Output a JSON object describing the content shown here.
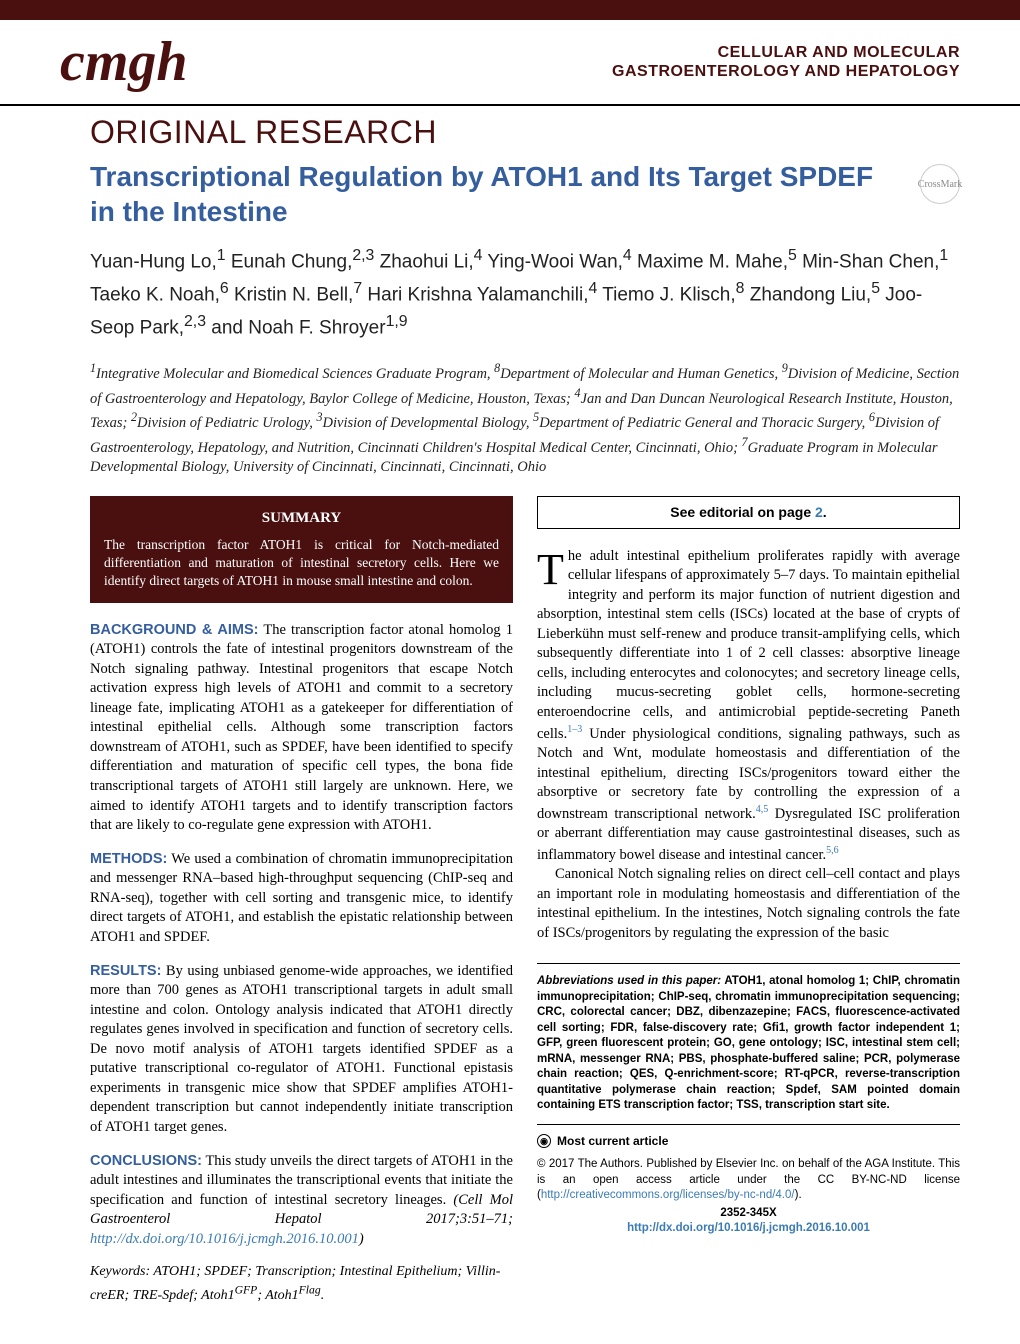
{
  "colors": {
    "brand": "#4a1010",
    "accent": "#355e9e",
    "link": "#3b7bb5",
    "bg": "#ffffff"
  },
  "typography": {
    "body_pt": 14.5,
    "title_pt": 28,
    "header_pt": 32,
    "logo_pt": 56
  },
  "header": {
    "logo": "cmgh",
    "journal_line1": "CELLULAR AND MOLECULAR",
    "journal_line2": "GASTROENTEROLOGY AND HEPATOLOGY"
  },
  "article_type": "ORIGINAL RESEARCH",
  "title": "Transcriptional Regulation by ATOH1 and Its Target SPDEF in the Intestine",
  "crossmark": "CrossMark",
  "authors_html": "Yuan-Hung Lo,<sup>1</sup> Eunah Chung,<sup>2,3</sup> Zhaohui Li,<sup>4</sup> Ying-Wooi Wan,<sup>4</sup> Maxime M. Mahe,<sup>5</sup> Min-Shan Chen,<sup>1</sup> Taeko K. Noah,<sup>6</sup> Kristin N. Bell,<sup>7</sup> Hari Krishna Yalamanchili,<sup>4</sup> Tiemo J. Klisch,<sup>8</sup> Zhandong Liu,<sup>5</sup> Joo-Seop Park,<sup>2,3</sup> and Noah F. Shroyer<sup>1,9</sup>",
  "affiliations": "<sup>1</sup>Integrative Molecular and Biomedical Sciences Graduate Program, <sup>8</sup>Department of Molecular and Human Genetics, <sup>9</sup>Division of Medicine, Section of Gastroenterology and Hepatology, Baylor College of Medicine, Houston, Texas; <sup>4</sup>Jan and Dan Duncan Neurological Research Institute, Houston, Texas; <sup>2</sup>Division of Pediatric Urology, <sup>3</sup>Division of Developmental Biology, <sup>5</sup>Department of Pediatric General and Thoracic Surgery, <sup>6</sup>Division of Gastroenterology, Hepatology, and Nutrition, Cincinnati Children's Hospital Medical Center, Cincinnati, Ohio; <sup>7</sup>Graduate Program in Molecular Developmental Biology, University of Cincinnati, Cincinnati, Cincinnati, Ohio",
  "summary": {
    "heading": "SUMMARY",
    "text": "The transcription factor ATOH1 is critical for Notch-mediated differentiation and maturation of intestinal secretory cells. Here we identify direct targets of ATOH1 in mouse small intestine and colon."
  },
  "abstract": {
    "background": {
      "head": "BACKGROUND & AIMS:",
      "text": " The transcription factor atonal homolog 1 (ATOH1) controls the fate of intestinal progenitors downstream of the Notch signaling pathway. Intestinal progenitors that escape Notch activation express high levels of ATOH1 and commit to a secretory lineage fate, implicating ATOH1 as a gatekeeper for differentiation of intestinal epithelial cells. Although some transcription factors downstream of ATOH1, such as SPDEF, have been identified to specify differentiation and maturation of specific cell types, the bona fide transcriptional targets of ATOH1 still largely are unknown. Here, we aimed to identify ATOH1 targets and to identify transcription factors that are likely to co-regulate gene expression with ATOH1."
    },
    "methods": {
      "head": "METHODS:",
      "text": " We used a combination of chromatin immunoprecipitation and messenger RNA–based high-throughput sequencing (ChIP-seq and RNA-seq), together with cell sorting and transgenic mice, to identify direct targets of ATOH1, and establish the epistatic relationship between ATOH1 and SPDEF."
    },
    "results": {
      "head": "RESULTS:",
      "text": " By using unbiased genome-wide approaches, we identified more than 700 genes as ATOH1 transcriptional targets in adult small intestine and colon. Ontology analysis indicated that ATOH1 directly regulates genes involved in specification and function of secretory cells. De novo motif analysis of ATOH1 targets identified SPDEF as a putative transcriptional co-regulator of ATOH1. Functional epistasis experiments in transgenic mice show that SPDEF amplifies ATOH1-dependent transcription but cannot independently initiate transcription of ATOH1 target genes."
    },
    "conclusions": {
      "head": "CONCLUSIONS:",
      "text": " This study unveils the direct targets of ATOH1 in the adult intestines and illuminates the transcriptional events that initiate the specification and function of intestinal secretory lineages. ",
      "citation": "(Cell Mol Gastroenterol Hepatol 2017;3:51–71; ",
      "doi_url": "http://dx.doi.org/10.1016/j.jcmgh.2016.10.001",
      "close": ")"
    }
  },
  "keywords_label": "Keywords:",
  "keywords": " ATOH1; SPDEF; Transcription; Intestinal Epithelium; Villin-creER; TRE-Spdef; Atoh1<sup>GFP</sup>; Atoh1<sup>Flag</sup>.",
  "editorial": {
    "text": "See editorial on page ",
    "page": "2",
    "dot": "."
  },
  "body": {
    "p1": "The adult intestinal epithelium proliferates rapidly with average cellular lifespans of approximately 5–7 days. To maintain epithelial integrity and perform its major function of nutrient digestion and absorption, intestinal stem cells (ISCs) located at the base of crypts of Lieberkühn must self-renew and produce transit-amplifying cells, which subsequently differentiate into 1 of 2 cell classes: absorptive lineage cells, including enterocytes and colonocytes; and secretory lineage cells, including mucus-secreting goblet cells, hormone-secreting enteroendocrine cells, and antimicrobial peptide-secreting Paneth cells.",
    "r1": "1–3",
    "p1b": " Under physiological conditions, signaling pathways, such as Notch and Wnt, modulate homeostasis and differentiation of the intestinal epithelium, directing ISCs/progenitors toward either the absorptive or secretory fate by controlling the expression of a downstream transcriptional network.",
    "r2": "4,5",
    "p1c": " Dysregulated ISC proliferation or aberrant differentiation may cause gastrointestinal diseases, such as inflammatory bowel disease and intestinal cancer.",
    "r3": "5,6",
    "p2": "Canonical Notch signaling relies on direct cell–cell contact and plays an important role in modulating homeostasis and differentiation of the intestinal epithelium. In the intestines, Notch signaling controls the fate of ISCs/progenitors by regulating the expression of the basic"
  },
  "abbr": {
    "lead": "Abbreviations used in this paper:",
    "text": " ATOH1, atonal homolog 1; ChIP, chromatin immunoprecipitation; ChIP-seq, chromatin immunoprecipitation sequencing; CRC, colorectal cancer; DBZ, dibenzazepine; FACS, fluorescence-activated cell sorting; FDR, false-discovery rate; Gfi1, growth factor independent 1; GFP, green fluorescent protein; GO, gene ontology; ISC, intestinal stem cell; mRNA, messenger RNA; PBS, phosphate-buffered saline; PCR, polymerase chain reaction; QES, Q-enrichment-score; RT-qPCR, reverse-transcription quantitative polymerase chain reaction; Spdef, SAM pointed domain containing ETS transcription factor; TSS, transcription start site."
  },
  "most_current": "Most current article",
  "copyright": {
    "text": "© 2017 The Authors. Published by Elsevier Inc. on behalf of the AGA Institute. This is an open access article under the CC BY-NC-ND license (",
    "url": "http://creativecommons.org/licenses/by-nc-nd/4.0/",
    "close": ")."
  },
  "issn": "2352-345X",
  "doi": {
    "url": "http://dx.doi.org/10.1016/j.jcmgh.2016.10.001"
  }
}
